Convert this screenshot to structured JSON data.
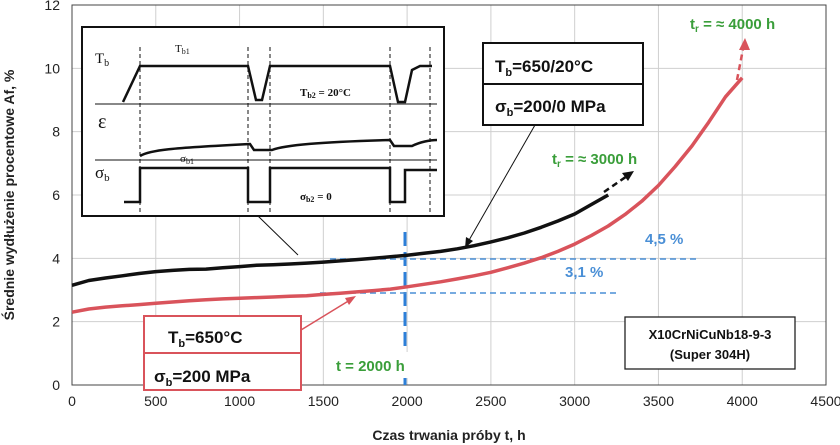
{
  "chart_data": {
    "type": "line",
    "xlabel": "Czas trwania próby t, h",
    "ylabel": "Średnie wydłużenie procentowe Af, %",
    "xlim": [
      0,
      4500
    ],
    "ylim": [
      0,
      12
    ],
    "x_ticks": [
      "0",
      "500",
      "1000",
      "1500",
      "2000",
      "2500",
      "3000",
      "3500",
      "4000",
      "4500"
    ],
    "y_ticks": [
      "0",
      "2",
      "4",
      "6",
      "8",
      "10",
      "12"
    ],
    "grid": true,
    "series": [
      {
        "color": "#111111",
        "x": [
          0,
          100,
          200,
          300,
          400,
          500,
          600,
          700,
          800,
          900,
          1000,
          1100,
          1200,
          1300,
          1400,
          1500,
          1600,
          1700,
          1800,
          1900,
          2000,
          2100,
          2200,
          2300,
          2400,
          2500,
          2600,
          2700,
          2800,
          2900,
          3000,
          3100,
          3200
        ],
        "y": [
          3.15,
          3.3,
          3.38,
          3.45,
          3.52,
          3.58,
          3.62,
          3.65,
          3.66,
          3.7,
          3.74,
          3.78,
          3.8,
          3.82,
          3.85,
          3.88,
          3.92,
          3.96,
          4.0,
          4.05,
          4.1,
          4.16,
          4.22,
          4.3,
          4.4,
          4.52,
          4.65,
          4.8,
          4.98,
          5.18,
          5.4,
          5.7,
          6.0
        ]
      },
      {
        "color": "#d9535b",
        "x": [
          0,
          100,
          200,
          300,
          400,
          500,
          600,
          700,
          800,
          900,
          1000,
          1100,
          1200,
          1300,
          1400,
          1500,
          1600,
          1700,
          1800,
          1900,
          2000,
          2100,
          2200,
          2300,
          2400,
          2500,
          2600,
          2700,
          2800,
          2900,
          3000,
          3100,
          3200,
          3300,
          3400,
          3500,
          3600,
          3700,
          3800,
          3900,
          4000
        ],
        "y": [
          2.3,
          2.4,
          2.46,
          2.5,
          2.54,
          2.58,
          2.62,
          2.66,
          2.69,
          2.72,
          2.74,
          2.76,
          2.78,
          2.8,
          2.82,
          2.86,
          2.9,
          2.94,
          2.98,
          3.03,
          3.1,
          3.18,
          3.26,
          3.35,
          3.45,
          3.56,
          3.7,
          3.85,
          4.02,
          4.22,
          4.45,
          4.72,
          5.02,
          5.38,
          5.8,
          6.3,
          6.9,
          7.55,
          8.3,
          9.1,
          9.7
        ]
      }
    ],
    "annotations": [
      {
        "text": "t = 2000 h",
        "color": "#3a9e3a"
      },
      {
        "text": "4,5 %",
        "color": "#4a8fd6"
      },
      {
        "text": "3,1 %",
        "color": "#4a8fd6"
      },
      {
        "text": "tr = ≈ 3000 h",
        "color": "#3a9e3a"
      },
      {
        "text": "tr = ≈ 4000 h",
        "color": "#3a9e3a"
      },
      {
        "text": "X10CrNiCuNb18-9-3"
      },
      {
        "text": "(Super 304H)"
      }
    ],
    "legend_black": [
      "Tb=650/20°C",
      "σb=200/0 MPa"
    ],
    "legend_red": [
      "Tb=650°C",
      "σb=200 MPa"
    ],
    "inset_labels": {
      "Tb": "Tb",
      "Tb1": "Tb1",
      "Tb2": "Tb2 = 20°C",
      "eps": "ε",
      "sigma_b": "σb",
      "sigma_b1": "σb1",
      "sigma_b2": "σb2 = 0"
    }
  }
}
